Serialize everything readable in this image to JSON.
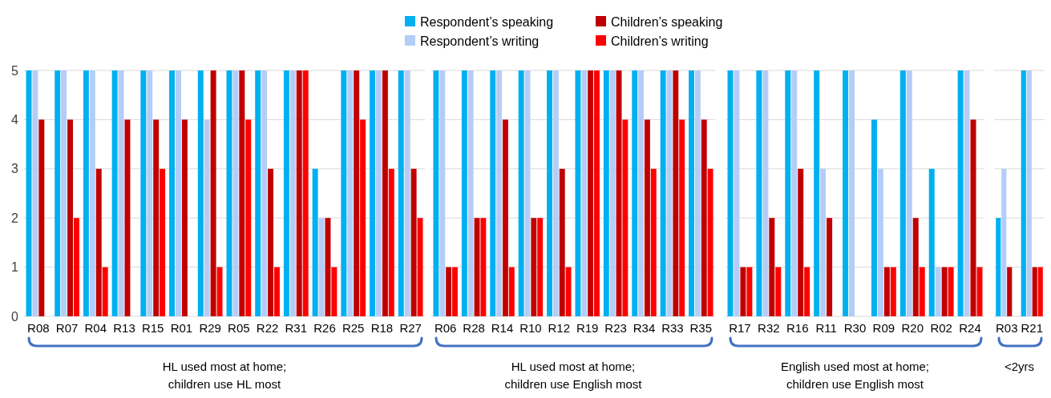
{
  "chart_data": [
    {
      "type": "bar",
      "categories": [
        "R08",
        "R07",
        "R04",
        "R13",
        "R15",
        "R01",
        "R29",
        "R05",
        "R22",
        "R31",
        "R26",
        "R25",
        "R18",
        "R27"
      ],
      "xlabel": "HL used most at home;\nchildren use HL most",
      "ylim": [
        0,
        5
      ],
      "yticks": [
        0,
        1,
        2,
        3,
        4,
        5
      ],
      "grid": "y",
      "legend": "top",
      "series": [
        {
          "name": "Respondent’s speaking",
          "color": "#00b0f0",
          "values": [
            5,
            5,
            5,
            5,
            5,
            5,
            5,
            5,
            5,
            5,
            3,
            5,
            5,
            5
          ]
        },
        {
          "name": "Respondent’s writing",
          "color": "#b4cdf8",
          "values": [
            5,
            5,
            5,
            5,
            5,
            5,
            4,
            5,
            5,
            5,
            2,
            5,
            5,
            5
          ]
        },
        {
          "name": "Children’s speaking",
          "color": "#c00000",
          "values": [
            4,
            4,
            3,
            4,
            4,
            4,
            5,
            5,
            3,
            5,
            2,
            5,
            5,
            3
          ]
        },
        {
          "name": "Children’s writing",
          "color": "#ff0000",
          "values": [
            0,
            2,
            1,
            0,
            3,
            0,
            1,
            4,
            1,
            5,
            1,
            4,
            3,
            2
          ]
        }
      ]
    },
    {
      "type": "bar",
      "categories": [
        "R06",
        "R28",
        "R14",
        "R10",
        "R12",
        "R19",
        "R23",
        "R34",
        "R33",
        "R35"
      ],
      "xlabel": "HL used most at home;\nchildren use English most",
      "ylim": [
        0,
        5
      ],
      "yticks": [
        0,
        1,
        2,
        3,
        4,
        5
      ],
      "grid": "y",
      "tick_labels": "x",
      "series": [
        {
          "color": "#00b0f0",
          "values": [
            5,
            5,
            5,
            5,
            5,
            5,
            5,
            5,
            5,
            5
          ]
        },
        {
          "color": "#b4cdf8",
          "values": [
            5,
            5,
            5,
            5,
            5,
            5,
            5,
            5,
            5,
            5
          ]
        },
        {
          "color": "#c00000",
          "values": [
            1,
            2,
            4,
            2,
            3,
            5,
            5,
            4,
            5,
            4
          ]
        },
        {
          "color": "#ff0000",
          "values": [
            1,
            2,
            1,
            2,
            1,
            5,
            4,
            3,
            4,
            3
          ]
        }
      ]
    },
    {
      "type": "bar",
      "categories": [
        "R17",
        "R32",
        "R16",
        "R11",
        "R30",
        "R09",
        "R20",
        "R02",
        "R24"
      ],
      "xlabel": "English used most at home;\nchildren use English most",
      "ylim": [
        0,
        5
      ],
      "yticks": [
        0,
        1,
        2,
        3,
        4,
        5
      ],
      "grid": "y",
      "tick_labels": "x",
      "series": [
        {
          "color": "#00b0f0",
          "values": [
            5,
            5,
            5,
            5,
            5,
            4,
            5,
            3,
            5
          ]
        },
        {
          "color": "#b4cdf8",
          "values": [
            5,
            5,
            5,
            3,
            5,
            3,
            5,
            1,
            5
          ]
        },
        {
          "color": "#c00000",
          "values": [
            1,
            2,
            3,
            2,
            0,
            1,
            2,
            1,
            4
          ]
        },
        {
          "color": "#ff0000",
          "values": [
            1,
            1,
            1,
            0,
            0,
            1,
            1,
            1,
            1
          ]
        }
      ]
    },
    {
      "type": "bar",
      "categories": [
        "R03",
        "R21"
      ],
      "xlabel": "<2yrs",
      "ylim": [
        0,
        5
      ],
      "yticks": [
        0,
        1,
        2,
        3,
        4,
        5
      ],
      "grid": "y",
      "tick_labels": "x",
      "series": [
        {
          "color": "#00b0f0",
          "values": [
            2,
            5
          ]
        },
        {
          "color": "#b4cdf8",
          "values": [
            3,
            5
          ]
        },
        {
          "color": "#c00000",
          "values": [
            1,
            1
          ]
        },
        {
          "color": "#ff0000",
          "values": [
            0,
            1
          ]
        }
      ]
    }
  ]
}
